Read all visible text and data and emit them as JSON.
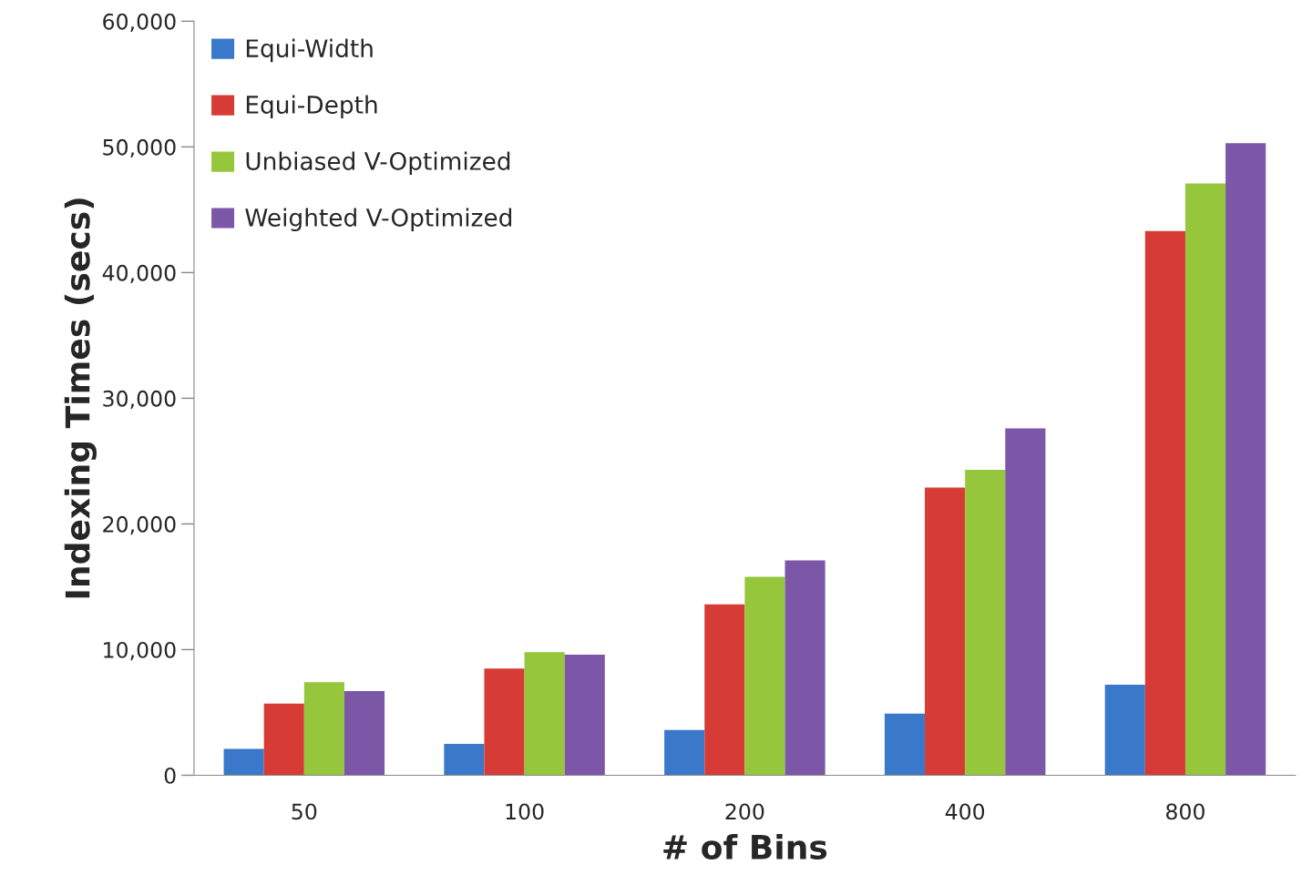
{
  "chart_data": {
    "type": "bar",
    "xlabel": "# of Bins",
    "ylabel": "Indexing Times (secs)",
    "categories": [
      "50",
      "100",
      "200",
      "400",
      "800"
    ],
    "series": [
      {
        "name": "Equi-Width",
        "color": "#3a78c9",
        "values": [
          2100,
          2500,
          3600,
          4900,
          7200
        ]
      },
      {
        "name": "Equi-Depth",
        "color": "#d63b35",
        "values": [
          5700,
          8500,
          13600,
          22900,
          43300
        ]
      },
      {
        "name": "Unbiased V-Optimized",
        "color": "#96c63c",
        "values": [
          7400,
          9800,
          15800,
          24300,
          47100
        ]
      },
      {
        "name": "Weighted V-Optimized",
        "color": "#7c57a8",
        "values": [
          6700,
          9600,
          17100,
          27600,
          50300
        ]
      }
    ],
    "ylim": [
      0,
      60000
    ],
    "yticks": [
      {
        "value": 0,
        "label": "0"
      },
      {
        "value": 10000,
        "label": "10,000"
      },
      {
        "value": 20000,
        "label": "20,000"
      },
      {
        "value": 30000,
        "label": "30,000"
      },
      {
        "value": 40000,
        "label": "40,000"
      },
      {
        "value": 50000,
        "label": "50,000"
      },
      {
        "value": 60000,
        "label": "60,000"
      }
    ],
    "grid": false,
    "legend": "top left"
  }
}
